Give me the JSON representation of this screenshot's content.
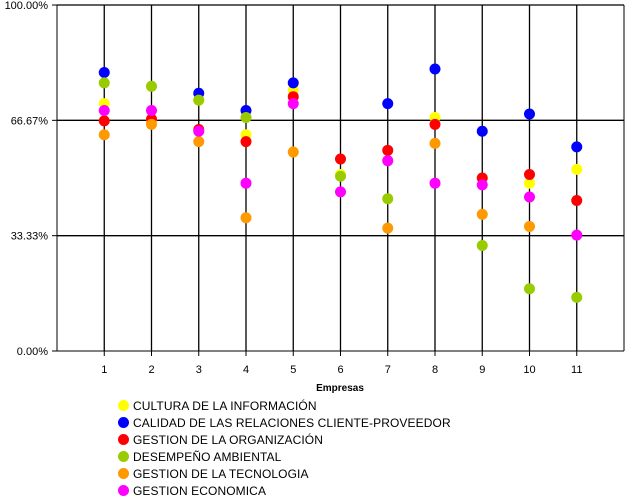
{
  "chart_data": {
    "type": "scatter",
    "title": "",
    "xlabel": "Empresas",
    "ylabel": "",
    "x": [
      1,
      2,
      3,
      4,
      5,
      6,
      7,
      8,
      9,
      10,
      11
    ],
    "x_tick_labels": [
      "1",
      "2",
      "3",
      "4",
      "5",
      "6",
      "7",
      "8",
      "9",
      "10",
      "11"
    ],
    "xlim": [
      0,
      12
    ],
    "ylim": [
      0,
      100
    ],
    "y_ticks": [
      0,
      33.33,
      66.67,
      100
    ],
    "y_tick_labels": [
      "0.00%",
      "33.33%",
      "66.67%",
      "100.00%"
    ],
    "grid": {
      "vertical": true,
      "horizontal": true
    },
    "legend_placement": "bottom",
    "series": [
      {
        "name": "CULTURA DE LA INFORMACIÓN",
        "color": "#FFFF00",
        "values": [
          71.5,
          66.5,
          72.5,
          62.5,
          75.5,
          51,
          null,
          67.5,
          null,
          48.5,
          52.5
        ]
      },
      {
        "name": "CALIDAD DE LAS RELACIONES CLIENTE-PROVEEDOR",
        "color": "#0000FF",
        "values": [
          80.5,
          null,
          74.5,
          69.5,
          77.5,
          null,
          71.5,
          81.5,
          63.5,
          68.5,
          59
        ]
      },
      {
        "name": "GESTION DE LA ORGANIZACIÓN",
        "color": "#FF0000",
        "values": [
          66.5,
          67,
          64,
          60.5,
          73.5,
          55.5,
          58,
          65.5,
          50,
          51,
          43.5
        ]
      },
      {
        "name": "DESEMPEÑO AMBIENTAL",
        "color": "#99CC00",
        "values": [
          77.5,
          76.5,
          72.5,
          67.5,
          null,
          50.5,
          44,
          null,
          30.5,
          18,
          15.5
        ]
      },
      {
        "name": "GESTION DE LA TECNOLOGIA",
        "color": "#FF9900",
        "values": [
          62.5,
          65.5,
          60.5,
          38.5,
          57.5,
          null,
          35.5,
          60,
          39.5,
          36,
          null
        ]
      },
      {
        "name": "GESTION ECONOMICA",
        "color": "#FF00FF",
        "values": [
          69.5,
          69.5,
          63.5,
          48.5,
          71.5,
          46,
          55,
          48.5,
          48,
          44.5,
          33.5
        ]
      }
    ]
  }
}
